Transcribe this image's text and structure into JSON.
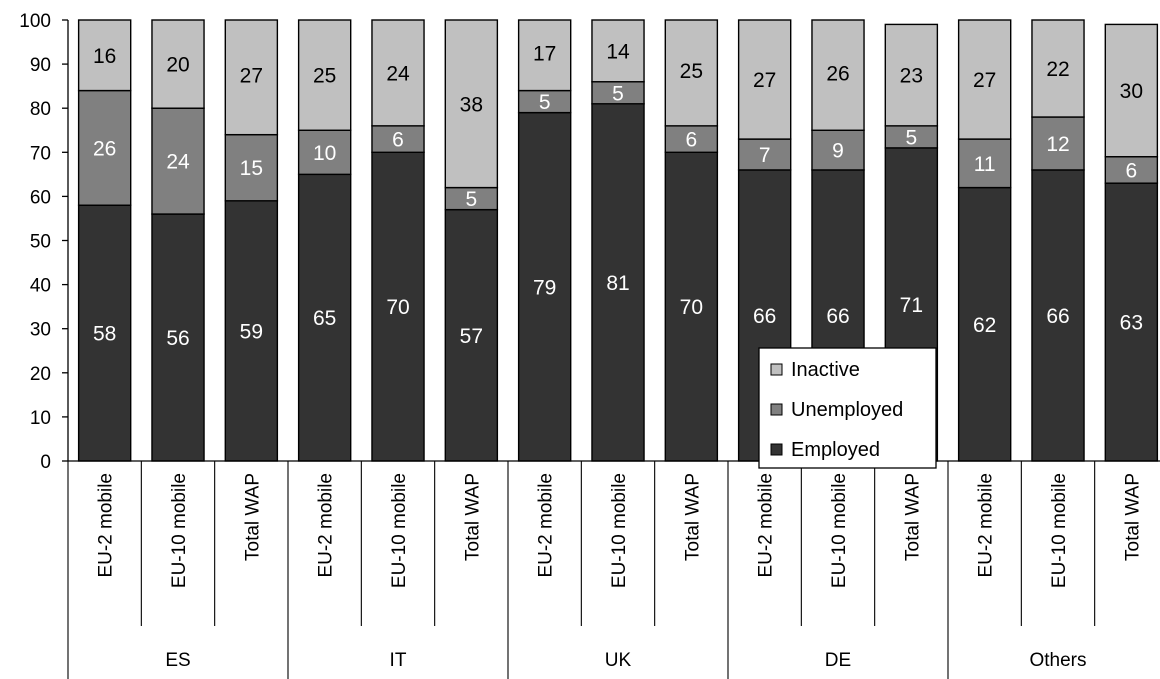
{
  "chart_data": {
    "type": "bar",
    "stacked": true,
    "groups": [
      {
        "name": "ES",
        "categories": [
          "EU-2 mobile",
          "EU-10 mobile",
          "Total WAP"
        ]
      },
      {
        "name": "IT",
        "categories": [
          "EU-2 mobile",
          "EU-10 mobile",
          "Total WAP"
        ]
      },
      {
        "name": "UK",
        "categories": [
          "EU-2 mobile",
          "EU-10 mobile",
          "Total WAP"
        ]
      },
      {
        "name": "DE",
        "categories": [
          "EU-2 mobile",
          "EU-10 mobile",
          "Total WAP"
        ]
      },
      {
        "name": "Others",
        "categories": [
          "EU-2 mobile",
          "EU-10 mobile",
          "Total WAP"
        ]
      }
    ],
    "series": [
      {
        "name": "Employed",
        "color": "#333333",
        "label_color": "#ffffff",
        "values": [
          58,
          56,
          59,
          65,
          70,
          57,
          79,
          81,
          70,
          66,
          66,
          71,
          62,
          66,
          63
        ]
      },
      {
        "name": "Unemployed",
        "color": "#808080",
        "label_color": "#ffffff",
        "values": [
          26,
          24,
          15,
          10,
          6,
          5,
          5,
          5,
          6,
          7,
          9,
          5,
          11,
          12,
          6
        ]
      },
      {
        "name": "Inactive",
        "color": "#c0c0c0",
        "label_color": "#000000",
        "values": [
          16,
          20,
          27,
          25,
          24,
          38,
          17,
          14,
          25,
          27,
          26,
          23,
          27,
          22,
          30
        ]
      }
    ],
    "ylim": [
      0,
      100
    ],
    "yticks": [
      "0",
      "10",
      "20",
      "30",
      "40",
      "50",
      "60",
      "70",
      "80",
      "90",
      "100"
    ],
    "legend": {
      "position": "lower-middle",
      "entries": [
        "Inactive",
        "Unemployed",
        "Employed"
      ]
    },
    "grid": false
  }
}
